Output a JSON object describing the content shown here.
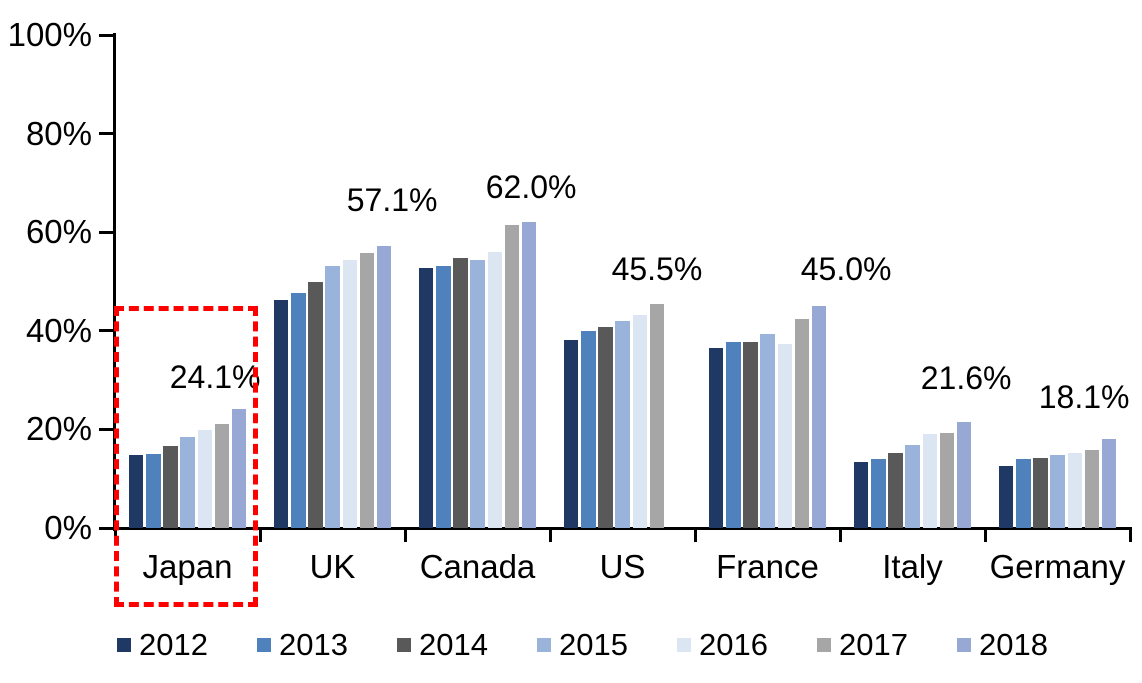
{
  "chart_data": {
    "type": "bar",
    "title": "",
    "xlabel": "",
    "ylabel": "",
    "categories": [
      "Japan",
      "UK",
      "Canada",
      "US",
      "France",
      "Italy",
      "Germany"
    ],
    "series": [
      {
        "name": "2012",
        "color": "#1F3864",
        "values": [
          14.9,
          46.2,
          52.8,
          38.2,
          36.6,
          13.3,
          12.5
        ]
      },
      {
        "name": "2013",
        "color": "#4F81BD",
        "values": [
          15.0,
          47.7,
          53.2,
          39.9,
          37.8,
          14.0,
          13.9
        ]
      },
      {
        "name": "2014",
        "color": "#595959",
        "values": [
          16.7,
          49.8,
          54.7,
          40.8,
          37.7,
          15.3,
          14.2
        ]
      },
      {
        "name": "2015",
        "color": "#99B3DA",
        "values": [
          18.4,
          53.2,
          54.4,
          41.9,
          39.4,
          16.8,
          14.8
        ]
      },
      {
        "name": "2016",
        "color": "#DCE6F2",
        "values": [
          19.9,
          54.4,
          55.9,
          43.3,
          37.4,
          19.0,
          15.3
        ]
      },
      {
        "name": "2017",
        "color": "#A6A6A6",
        "values": [
          21.1,
          55.7,
          61.4,
          45.5,
          42.3,
          19.2,
          15.8
        ]
      },
      {
        "name": "2018",
        "color": "#98A8D4",
        "values": [
          24.1,
          57.1,
          62.0,
          null,
          45.0,
          21.6,
          18.1
        ]
      }
    ],
    "value_labels": [
      "24.1%",
      "57.1%",
      "62.0%",
      "45.5%",
      "45.0%",
      "21.6%",
      "18.1%"
    ],
    "y_axis": {
      "min": 0,
      "max": 100,
      "tick_labels": [
        "0%",
        "20%",
        "40%",
        "60%",
        "80%",
        "100%"
      ]
    },
    "legend": {
      "position": "bottom",
      "entries": [
        "2012",
        "2013",
        "2014",
        "2015",
        "2016",
        "2017",
        "2018"
      ]
    },
    "grid": false,
    "highlight": {
      "category": "Japan",
      "shape": "dashed-rectangle",
      "color": "#FF0000"
    },
    "axis_color": "#000000",
    "background_color": "#FFFFFF"
  }
}
